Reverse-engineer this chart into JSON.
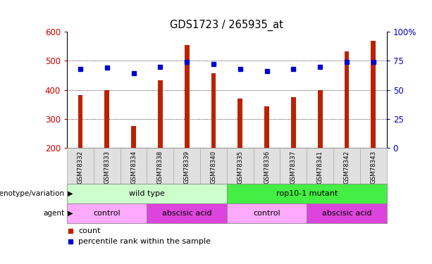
{
  "title": "GDS1723 / 265935_at",
  "samples": [
    "GSM78332",
    "GSM78333",
    "GSM78334",
    "GSM78338",
    "GSM78339",
    "GSM78340",
    "GSM78335",
    "GSM78336",
    "GSM78337",
    "GSM78341",
    "GSM78342",
    "GSM78343"
  ],
  "counts": [
    382,
    400,
    275,
    432,
    554,
    458,
    370,
    344,
    374,
    400,
    532,
    568
  ],
  "percentiles": [
    68,
    69,
    64,
    70,
    74,
    72,
    68,
    66,
    68,
    70,
    74,
    74
  ],
  "ylim_left": [
    200,
    600
  ],
  "ylim_right": [
    0,
    100
  ],
  "yticks_left": [
    200,
    300,
    400,
    500,
    600
  ],
  "yticks_right": [
    0,
    25,
    50,
    75,
    100
  ],
  "ytick_right_labels": [
    "0",
    "25",
    "50",
    "75",
    "100%"
  ],
  "bar_color": "#bb2200",
  "dot_color": "#0000cc",
  "genotype_row": [
    {
      "label": "wild type",
      "start": 0,
      "end": 6,
      "color": "#ccffcc"
    },
    {
      "label": "rop10-1 mutant",
      "start": 6,
      "end": 12,
      "color": "#44ee44"
    }
  ],
  "agent_row": [
    {
      "label": "control",
      "start": 0,
      "end": 3,
      "color": "#ffaaff"
    },
    {
      "label": "abscisic acid",
      "start": 3,
      "end": 6,
      "color": "#dd44dd"
    },
    {
      "label": "control",
      "start": 6,
      "end": 9,
      "color": "#ffaaff"
    },
    {
      "label": "abscisic acid",
      "start": 9,
      "end": 12,
      "color": "#dd44dd"
    }
  ],
  "ytick_left_color": "#cc0000",
  "ytick_right_color": "#0000bb",
  "row_label_genotype": "genotype/variation",
  "row_label_agent": "agent",
  "legend_count": "count",
  "legend_percentile": "percentile rank within the sample",
  "hgrid_values": [
    300,
    400,
    500
  ]
}
